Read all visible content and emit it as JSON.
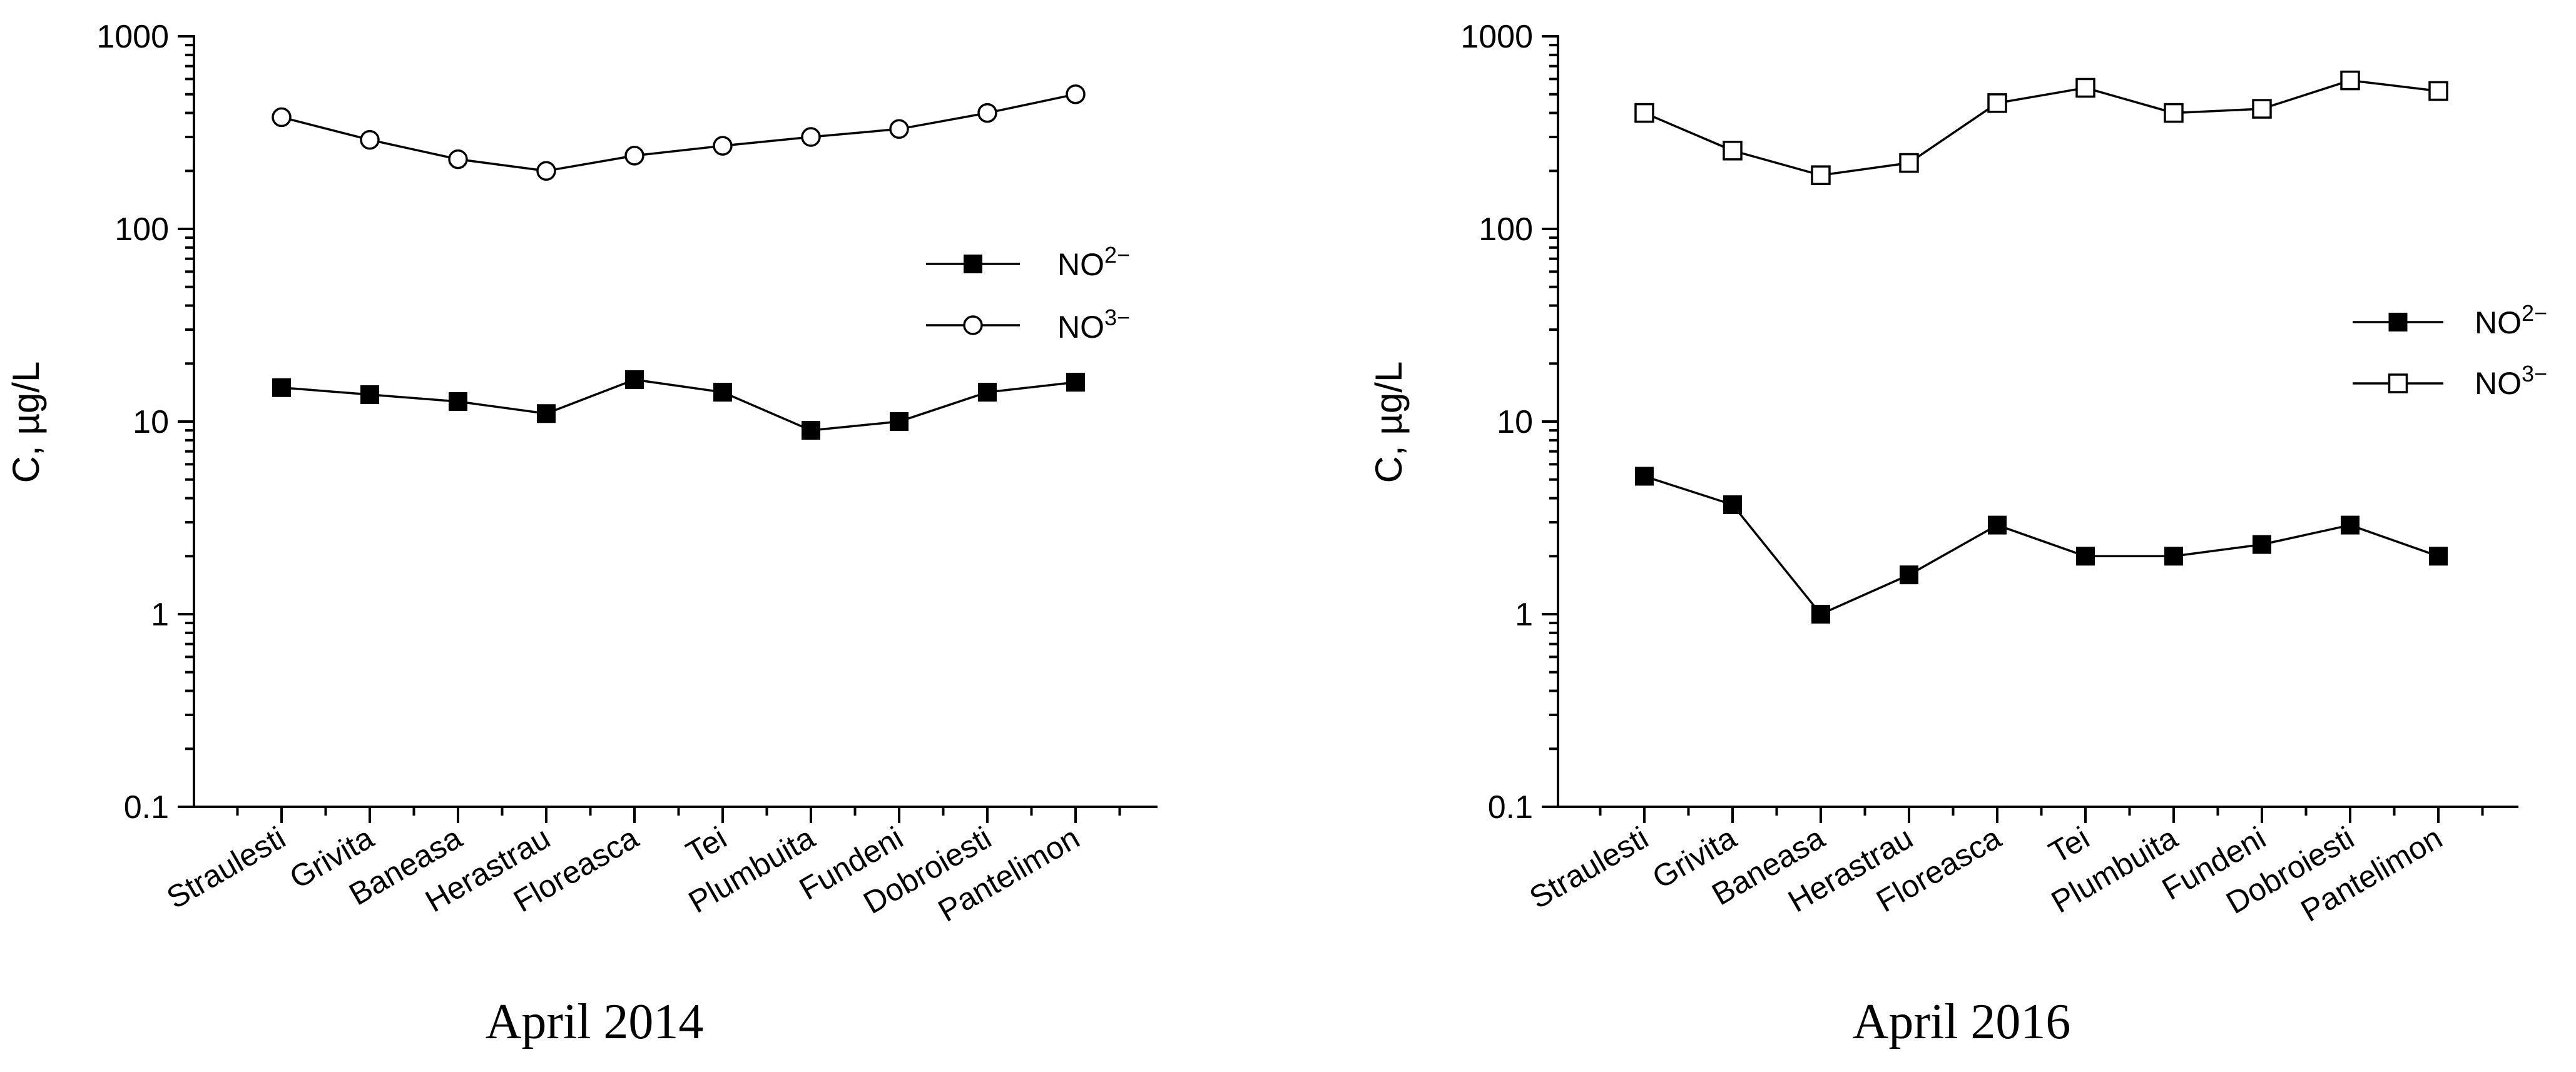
{
  "chart_data": [
    {
      "type": "line",
      "title": "April 2014",
      "ylabel": "C, µg/L",
      "yscale": "log",
      "ylim": [
        0.1,
        1000
      ],
      "yticks": [
        "0.1",
        "1",
        "10",
        "100",
        "1000"
      ],
      "categories": [
        "Straulesti",
        "Grivita",
        "Baneasa",
        "Herastrau",
        "Floreasca",
        "Tei",
        "Plumbuita",
        "Fundeni",
        "Dobroiesti",
        "Pantelimon"
      ],
      "series": [
        {
          "name": "NO",
          "superscript": "2−",
          "marker": "filled-square",
          "values": [
            15,
            13.8,
            12.7,
            11,
            16.5,
            14.2,
            9,
            10,
            14.2,
            16
          ]
        },
        {
          "name": "NO",
          "superscript": "3−",
          "marker": "open-circle",
          "values": [
            380,
            290,
            230,
            200,
            240,
            270,
            300,
            330,
            400,
            500
          ]
        }
      ],
      "legend_position": "right"
    },
    {
      "type": "line",
      "title": "April 2016",
      "ylabel": "C, µg/L",
      "yscale": "log",
      "ylim": [
        0.1,
        1000
      ],
      "yticks": [
        "0.1",
        "1",
        "10",
        "100",
        "1000"
      ],
      "categories": [
        "Straulesti",
        "Grivita",
        "Baneasa",
        "Herastrau",
        "Floreasca",
        "Tei",
        "Plumbuita",
        "Fundeni",
        "Dobroiesti",
        "Pantelimon"
      ],
      "series": [
        {
          "name": "NO",
          "superscript": "2−",
          "marker": "filled-square",
          "values": [
            5.2,
            3.7,
            1.0,
            1.6,
            2.9,
            2.0,
            2.0,
            2.3,
            2.9,
            2.0
          ]
        },
        {
          "name": "NO",
          "superscript": "3−",
          "marker": "open-square",
          "values": [
            400,
            255,
            190,
            220,
            450,
            540,
            400,
            420,
            590,
            520
          ]
        }
      ],
      "legend_position": "right"
    }
  ]
}
